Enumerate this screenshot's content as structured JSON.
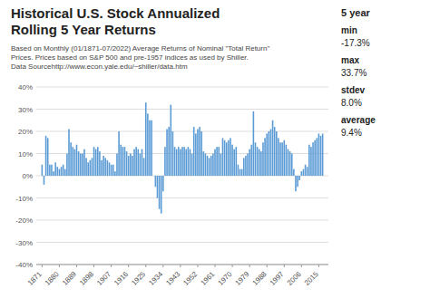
{
  "chart_data": {
    "type": "bar",
    "title": "Historical U.S. Stock Annualized\nRolling 5 Year Returns",
    "subtitle": "Based on Monthly (01/1871-07/2022) Average Returns of Nominal \"Total Return\"\nPrices. Prices based on S&P 500 and pre-1957 indices as used by Shiller.\nData Sourcehttp://www.econ.yale.edu/~shiller/data.htm",
    "annotations": [
      {
        "title": "5 year",
        "items": [
          {
            "label": "min",
            "text": "-17.3%"
          },
          {
            "label": "max",
            "text": "33.7%"
          },
          {
            "label": "stdev",
            "text": "8.0%"
          },
          {
            "label": "average",
            "text": "9.4%"
          }
        ]
      }
    ],
    "color": "#5b9bd5",
    "grid": true,
    "xlim": [
      1868,
      2020
    ],
    "xticks": [
      1871,
      1880,
      1889,
      1898,
      1907,
      1916,
      1925,
      1934,
      1943,
      1952,
      1961,
      1970,
      1979,
      1988,
      1997,
      2006,
      2015
    ],
    "ylim": [
      -40,
      40
    ],
    "yticks": [
      {
        "value": -40,
        "label": "-40%"
      },
      {
        "value": -30,
        "label": "-30%"
      },
      {
        "value": -20,
        "label": "-20%"
      },
      {
        "value": -10,
        "label": "-10%"
      },
      {
        "value": 0,
        "label": "0%"
      },
      {
        "value": 10,
        "label": "10%"
      },
      {
        "value": 20,
        "label": "20%"
      },
      {
        "value": 30,
        "label": "30%"
      },
      {
        "value": 40,
        "label": "40%"
      }
    ],
    "x": [
      1871,
      1872,
      1873,
      1874,
      1875,
      1876,
      1877,
      1878,
      1879,
      1880,
      1881,
      1882,
      1883,
      1884,
      1885,
      1886,
      1887,
      1888,
      1889,
      1890,
      1891,
      1892,
      1893,
      1894,
      1895,
      1896,
      1897,
      1898,
      1899,
      1900,
      1901,
      1902,
      1903,
      1904,
      1905,
      1906,
      1907,
      1908,
      1909,
      1910,
      1911,
      1912,
      1913,
      1914,
      1915,
      1916,
      1917,
      1918,
      1919,
      1920,
      1921,
      1922,
      1923,
      1924,
      1925,
      1926,
      1927,
      1928,
      1929,
      1930,
      1931,
      1932,
      1933,
      1934,
      1935,
      1936,
      1937,
      1938,
      1939,
      1940,
      1941,
      1942,
      1943,
      1944,
      1945,
      1946,
      1947,
      1948,
      1949,
      1950,
      1951,
      1952,
      1953,
      1954,
      1955,
      1956,
      1957,
      1958,
      1959,
      1960,
      1961,
      1962,
      1963,
      1964,
      1965,
      1966,
      1967,
      1968,
      1969,
      1970,
      1971,
      1972,
      1973,
      1974,
      1975,
      1976,
      1977,
      1978,
      1979,
      1980,
      1981,
      1982,
      1983,
      1984,
      1985,
      1986,
      1987,
      1988,
      1989,
      1990,
      1991,
      1992,
      1993,
      1994,
      1995,
      1996,
      1997,
      1998,
      1999,
      2000,
      2001,
      2002,
      2003,
      2004,
      2005,
      2006,
      2007,
      2008,
      2009,
      2010,
      2011,
      2012,
      2013,
      2014,
      2015,
      2016,
      2017
    ],
    "values": [
      5,
      -4,
      18,
      17,
      5,
      5,
      2,
      6,
      4,
      3,
      4,
      5,
      3,
      10,
      21,
      15,
      13,
      12,
      14,
      11,
      10,
      10,
      12,
      8,
      6,
      7,
      8,
      13,
      12,
      13,
      11,
      7,
      9,
      8,
      7,
      6,
      5,
      5,
      2,
      10,
      20,
      14,
      13,
      13,
      11,
      9,
      10,
      9,
      12,
      13,
      12,
      10,
      12,
      8,
      33,
      28,
      25,
      25,
      0,
      -5,
      -10,
      -15,
      -17,
      -7,
      13,
      21,
      22,
      32,
      20,
      13,
      12,
      13,
      12,
      13,
      13,
      12,
      13,
      12,
      10,
      22,
      19,
      21,
      22,
      20,
      11,
      10,
      9,
      8,
      9,
      10,
      12,
      13,
      13,
      10,
      17,
      16,
      15,
      16,
      17,
      14,
      12,
      13,
      5,
      3,
      3,
      8,
      9,
      10,
      12,
      14,
      29,
      15,
      13,
      12,
      11,
      15,
      17,
      19,
      20,
      21,
      25,
      22,
      20,
      17,
      15,
      15,
      16,
      14,
      12,
      11,
      10,
      3,
      -7,
      -5,
      -2,
      2,
      3,
      5,
      4,
      14,
      13,
      15,
      16,
      17,
      19,
      18,
      19
    ]
  }
}
